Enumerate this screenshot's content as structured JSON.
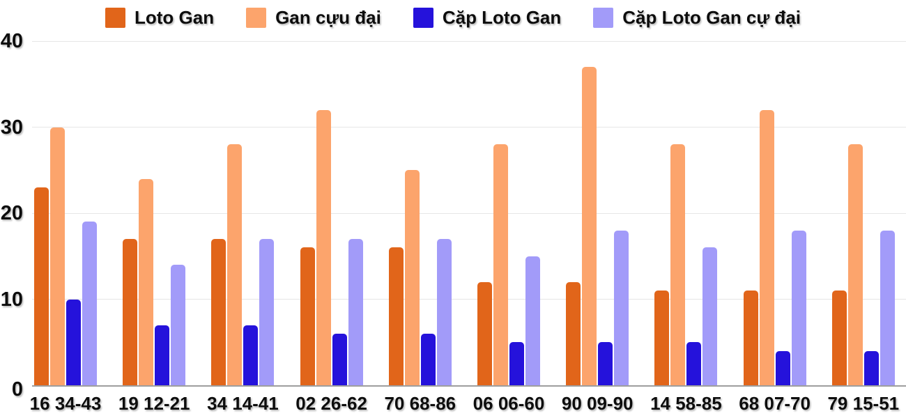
{
  "chart_data": {
    "type": "bar",
    "categories": [
      "16 34-43",
      "19 12-21",
      "34 14-41",
      "02 26-62",
      "70 68-86",
      "06 06-60",
      "90 09-90",
      "14 58-85",
      "68 07-70",
      "79 15-51"
    ],
    "series": [
      {
        "name": "Loto Gan",
        "color": "#E1651A",
        "values": [
          23,
          17,
          17,
          16,
          16,
          12,
          12,
          11,
          11,
          11
        ]
      },
      {
        "name": "Gan cựu đại",
        "color": "#FCA46C",
        "values": [
          30,
          24,
          28,
          32,
          25,
          28,
          37,
          28,
          32,
          28
        ]
      },
      {
        "name": "Cặp Loto Gan",
        "color": "#2512DB",
        "values": [
          10,
          7,
          7,
          6,
          6,
          5,
          5,
          5,
          4,
          4
        ]
      },
      {
        "name": "Cặp Loto Gan cự đại",
        "color": "#A29BF9",
        "values": [
          19,
          14,
          17,
          17,
          17,
          15,
          18,
          16,
          18,
          18
        ]
      }
    ],
    "xlabel": "",
    "ylabel": "",
    "ylim": [
      0,
      40
    ],
    "yticks": [
      0,
      10,
      20,
      30,
      40
    ],
    "grid": "horizontal",
    "legend_position": "top",
    "colors": {
      "background": "#FFFFFF",
      "gridline": "#E6E6E6",
      "axis_line": "#9E9E9E",
      "label_text": "#0D0D0D"
    }
  }
}
